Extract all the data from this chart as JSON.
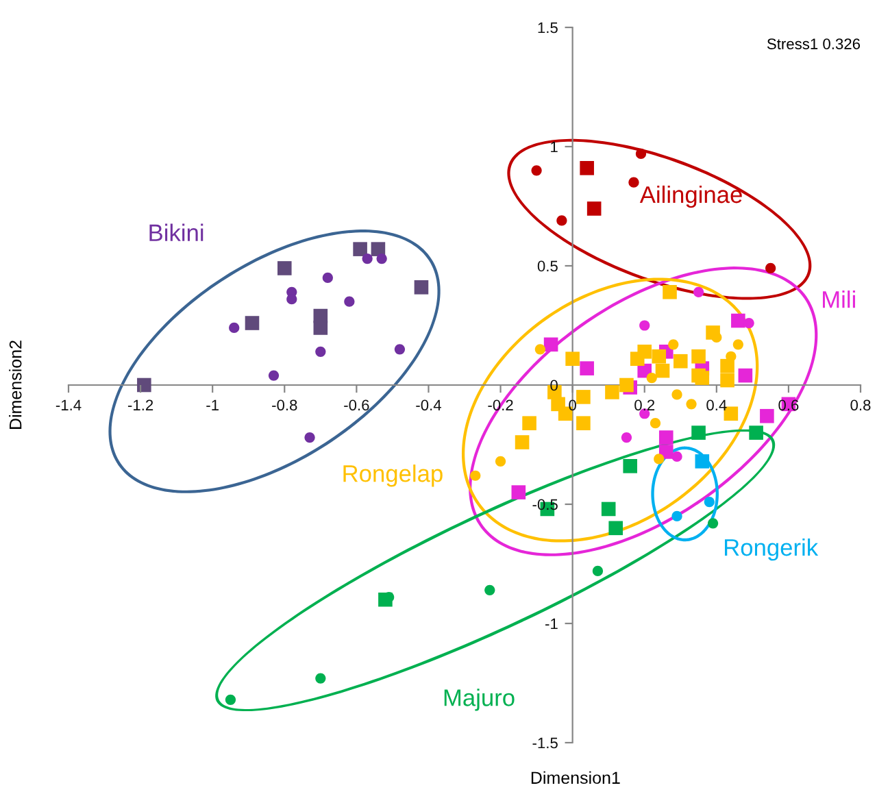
{
  "chart_data": {
    "type": "scatter",
    "xlabel": "Dimension1",
    "ylabel": "Dimension2",
    "xlim": [
      -1.4,
      0.8
    ],
    "ylim": [
      -1.5,
      1.5
    ],
    "xticks": [
      -1.4,
      -1.2,
      -1,
      -0.8,
      -0.6,
      -0.4,
      -0.2,
      0,
      0.2,
      0.4,
      0.6,
      0.8
    ],
    "yticks": [
      -1.5,
      -1,
      -0.5,
      0,
      0.5,
      1,
      1.5
    ],
    "grid": false,
    "annotations": [
      "Stress1 0.326"
    ],
    "series": [
      {
        "marker": "square",
        "color": "#604a7b",
        "x": [
          -1.19,
          -0.8,
          -0.89,
          -0.7,
          -0.7,
          -0.59,
          -0.54,
          -0.42
        ],
        "values": [
          0,
          0.49,
          0.26,
          0.29,
          0.24,
          0.57,
          0.57,
          0.41
        ]
      },
      {
        "name": "Bikini",
        "marker": "circle",
        "color": "#7030a0",
        "x": [
          -0.94,
          -0.83,
          -0.78,
          -0.78,
          -0.68,
          -0.62,
          -0.7,
          -0.57,
          -0.53,
          -0.48,
          -0.73
        ],
        "values": [
          0.24,
          0.04,
          0.39,
          0.36,
          0.45,
          0.35,
          0.14,
          0.53,
          0.53,
          0.15,
          -0.22
        ]
      },
      {
        "name": "Ailinginae",
        "marker": "circle",
        "color": "#c00000",
        "x": [
          -0.1,
          -0.03,
          0.19,
          0.17,
          0.55
        ],
        "values": [
          0.9,
          0.69,
          0.97,
          0.85,
          0.49
        ]
      },
      {
        "marker": "square",
        "color": "#c00000",
        "x": [
          0.04,
          0.06
        ],
        "values": [
          0.91,
          0.74
        ]
      },
      {
        "marker": "square",
        "color": "#e526d8",
        "x": [
          -0.06,
          0.04,
          0.16,
          0.2,
          0.26,
          0.36,
          0.46,
          0.48,
          0.54,
          0.6,
          0.26,
          0.26,
          -0.15
        ],
        "values": [
          0.17,
          0.07,
          -0.01,
          0.06,
          0.14,
          0.07,
          0.27,
          0.04,
          -0.13,
          -0.08,
          -0.22,
          -0.28,
          -0.45
        ]
      },
      {
        "name": "Mili",
        "marker": "circle",
        "color": "#e526d8",
        "x": [
          0.2,
          0.2,
          0.15,
          0.29,
          0.49,
          0.35
        ],
        "values": [
          0.25,
          -0.12,
          -0.22,
          -0.3,
          0.26,
          0.39
        ]
      },
      {
        "marker": "square",
        "color": "#ffc000",
        "x": [
          0,
          -0.05,
          -0.04,
          -0.02,
          0.03,
          0.03,
          -0.12,
          -0.14,
          0.11,
          0.15,
          0.18,
          0.2,
          0.24,
          0.25,
          0.3,
          0.35,
          0.35,
          0.36,
          0.39,
          0.43,
          0.43,
          0.44,
          0.27
        ],
        "values": [
          0.11,
          -0.03,
          -0.08,
          -0.12,
          -0.05,
          -0.16,
          -0.16,
          -0.24,
          -0.03,
          0,
          0.11,
          0.14,
          0.12,
          0.06,
          0.1,
          0.12,
          0.04,
          0.03,
          0.22,
          0.08,
          0.02,
          -0.12,
          0.39
        ]
      },
      {
        "name": "Rongelap",
        "marker": "circle",
        "color": "#ffc000",
        "x": [
          -0.09,
          0.28,
          0.4,
          0.46,
          0.44,
          0.22,
          0.29,
          0.33,
          0.23,
          0.24,
          -0.2,
          -0.27
        ],
        "values": [
          0.15,
          0.17,
          0.2,
          0.17,
          0.12,
          0.03,
          -0.04,
          -0.08,
          -0.16,
          -0.31,
          -0.32,
          -0.38
        ]
      },
      {
        "marker": "square",
        "color": "#00b050",
        "x": [
          0.35,
          0.51,
          0.16,
          0.1,
          0.12,
          -0.07,
          -0.52
        ],
        "values": [
          -0.2,
          -0.2,
          -0.34,
          -0.52,
          -0.6,
          -0.52,
          -0.9
        ]
      },
      {
        "name": "Majuro",
        "marker": "circle",
        "color": "#00b050",
        "x": [
          -0.51,
          -0.23,
          0.07,
          -0.7,
          -0.95,
          0.39
        ],
        "values": [
          -0.89,
          -0.86,
          -0.78,
          -1.23,
          -1.32,
          -0.58
        ]
      },
      {
        "marker": "square",
        "color": "#00b0f0",
        "x": [
          0.36
        ],
        "values": [
          -0.32
        ]
      },
      {
        "name": "Rongerik",
        "marker": "circle",
        "color": "#00b0f0",
        "x": [
          0.29,
          0.38
        ],
        "values": [
          -0.55,
          -0.49
        ]
      }
    ]
  }
}
